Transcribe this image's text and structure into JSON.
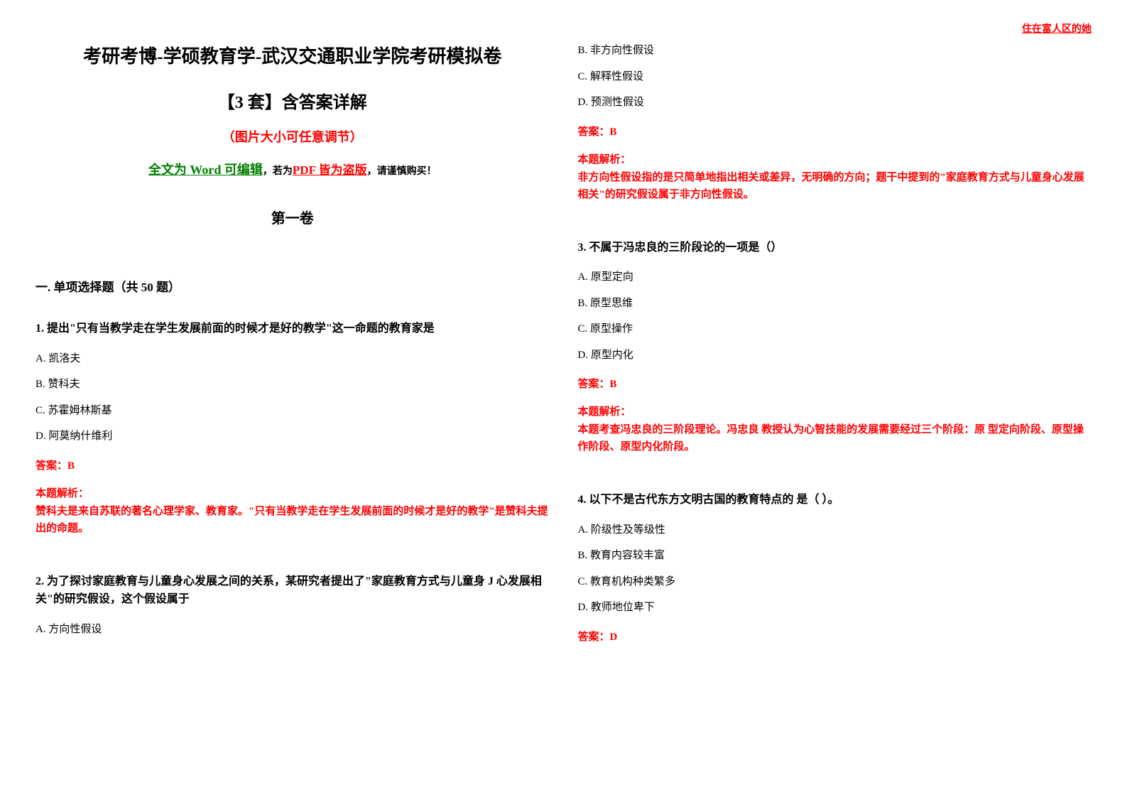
{
  "header": {
    "top_right": "住在富人区的她"
  },
  "colors": {
    "red": "#ff0000",
    "green": "#008000",
    "black": "#000000",
    "background": "#ffffff"
  },
  "typography": {
    "title_main_size": 26,
    "title_sub_size": 24,
    "body_size": 15,
    "font_family": "SimSun"
  },
  "left": {
    "title_main": "考研考博-学硕教育学-武汉交通职业学院考研模拟卷",
    "title_sub": "【3 套】含答案详解",
    "title_note": "（图片大小可任意调节）",
    "edit_prefix": "全文为 Word 可编辑",
    "edit_mid": "，若为",
    "edit_pdf": "PDF 皆为盗版",
    "edit_suffix": "，请谨慎购买！",
    "volume": "第一卷",
    "section": "一. 单项选择题（共 50 题）",
    "q1": {
      "text": "1. 提出\"只有当教学走在学生发展前面的时候才是好的教学\"这一命题的教育家是",
      "a": "A. 凯洛夫",
      "b": "B. 赞科夫",
      "c": "C. 苏霍姆林斯基",
      "d": "D. 阿莫纳什维利",
      "answer": "答案：B",
      "analysis_label": "本题解析：",
      "analysis": "赞科夫是来自苏联的著名心理学家、教育家。\"只有当教学走在学生发展前面的时候才是好的教学\"是赞科夫提出的命题。"
    },
    "q2": {
      "text": "2. 为了探讨家庭教育与儿童身心发展之间的关系，某研究者提出了\"家庭教育方式与儿童身 J 心发展相关\"的研究假设，这个假设属于",
      "a": "A. 方向性假设"
    }
  },
  "right": {
    "q2_cont": {
      "b": "B. 非方向性假设",
      "c": "C. 解释性假设",
      "d": "D. 预测性假设",
      "answer": "答案：B",
      "analysis_label": "本题解析：",
      "analysis": "非方向性假设指的是只简单地指出相关或差异，无明确的方向；题干中提到的\"家庭教育方式与儿童身心发展相关\"的研究假设属于非方向性假设。"
    },
    "q3": {
      "text": "3. 不属于冯忠良的三阶段论的一项是（）",
      "a": "A. 原型定向",
      "b": "B. 原型思维",
      "c": "C. 原型操作",
      "d": "D. 原型内化",
      "answer": "答案：B",
      "analysis_label": "本题解析：",
      "analysis": "本题考查冯忠良的三阶段理论。冯忠良 教授认为心智技能的发展需要经过三个阶段：原 型定向阶段、原型操作阶段、原型内化阶段。"
    },
    "q4": {
      "text": "4. 以下不是古代东方文明古国的教育特点的 是（ ）。",
      "a": "A. 阶级性及等级性",
      "b": "B. 教育内容较丰富",
      "c": "C. 教育机构种类繁多",
      "d": "D. 教师地位卑下",
      "answer": "答案：D"
    }
  }
}
